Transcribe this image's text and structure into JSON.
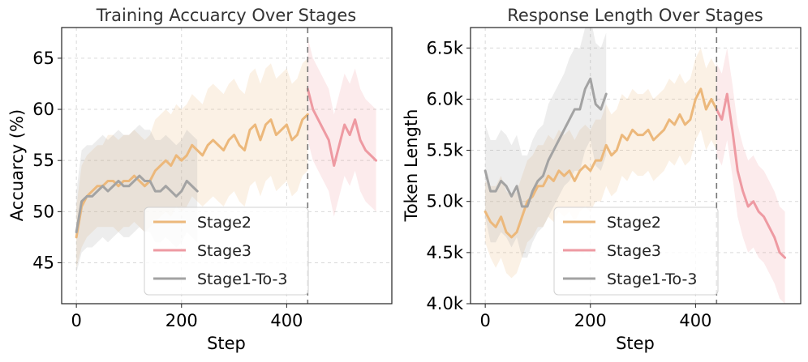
{
  "chart_data": [
    {
      "type": "line",
      "title": "Training Accuarcy Over Stages",
      "xlabel": "Step",
      "ylabel": "Accuarcy (%)",
      "xlim": [
        -28,
        600
      ],
      "ylim": [
        41,
        68
      ],
      "xticks": [
        0,
        200,
        400
      ],
      "xtick_labels": [
        "0",
        "200",
        "400"
      ],
      "yticks": [
        45,
        50,
        55,
        60,
        65
      ],
      "ytick_labels": [
        "45",
        "50",
        "55",
        "60",
        "65"
      ],
      "grid": true,
      "stage_boundary_x": 440,
      "legend_position": "bottom-right",
      "series": [
        {
          "name": "Stage2",
          "color": "#ecb87b",
          "x": [
            0,
            10,
            20,
            30,
            40,
            50,
            60,
            70,
            80,
            90,
            100,
            110,
            120,
            130,
            140,
            150,
            160,
            170,
            180,
            190,
            200,
            210,
            220,
            230,
            240,
            250,
            260,
            270,
            280,
            290,
            300,
            310,
            320,
            330,
            340,
            350,
            360,
            370,
            380,
            390,
            400,
            410,
            420,
            430,
            440
          ],
          "y": [
            47.5,
            50.5,
            51.5,
            52.0,
            52.5,
            52.5,
            53.0,
            53.0,
            52.5,
            53.0,
            53.0,
            53.5,
            53.0,
            52.5,
            53.0,
            54.0,
            54.5,
            55.0,
            54.5,
            55.5,
            55.0,
            55.5,
            56.5,
            56.0,
            55.5,
            56.5,
            57.0,
            56.5,
            56.0,
            57.0,
            57.5,
            56.5,
            56.0,
            58.0,
            58.5,
            57.0,
            58.5,
            59.0,
            57.5,
            58.0,
            58.5,
            57.0,
            57.5,
            59.0,
            59.5
          ],
          "band_halfwidth": [
            3,
            4,
            4,
            4,
            4,
            4,
            4.5,
            4.5,
            4.5,
            4.5,
            4.5,
            4.5,
            4.5,
            4.5,
            4.5,
            5,
            5,
            5,
            5,
            5,
            5,
            5,
            5,
            5,
            5,
            5.5,
            5.5,
            5.5,
            5.5,
            5.5,
            5.5,
            5.5,
            5.5,
            5.5,
            5.5,
            5.5,
            5.5,
            5.5,
            5.5,
            5.5,
            5.5,
            5.5,
            5.5,
            5.5,
            5.5
          ]
        },
        {
          "name": "Stage3",
          "color": "#ee9aa2",
          "x": [
            440,
            450,
            460,
            470,
            480,
            490,
            500,
            510,
            520,
            530,
            540,
            550,
            560,
            570
          ],
          "y": [
            62.0,
            60.0,
            59.0,
            58.0,
            57.0,
            54.5,
            56.5,
            58.5,
            57.5,
            59.0,
            57.0,
            56.0,
            55.5,
            55.0
          ],
          "band_halfwidth": [
            5,
            5,
            5,
            5,
            5,
            5,
            5,
            5,
            5,
            5,
            5,
            5,
            5,
            5
          ]
        },
        {
          "name": "Stage1-To-3",
          "color": "#a3a3a3",
          "x": [
            0,
            10,
            20,
            30,
            40,
            50,
            60,
            70,
            80,
            90,
            100,
            110,
            120,
            130,
            140,
            150,
            160,
            170,
            180,
            190,
            200,
            210,
            220,
            230
          ],
          "y": [
            48.0,
            51.0,
            51.5,
            51.5,
            52.0,
            52.5,
            52.0,
            52.5,
            53.0,
            52.5,
            52.5,
            53.0,
            53.5,
            53.0,
            53.0,
            52.0,
            52.0,
            52.5,
            52.0,
            51.5,
            52.0,
            53.0,
            52.5,
            52.0
          ],
          "band_halfwidth": [
            4,
            5,
            5,
            5,
            5,
            5,
            5,
            5,
            5,
            5,
            5,
            5,
            5,
            5,
            5,
            5,
            5,
            5,
            5,
            5,
            5,
            5,
            5,
            5
          ]
        }
      ]
    },
    {
      "type": "line",
      "title": "Response Length Over Stages",
      "xlabel": "Step",
      "ylabel": "Token Length",
      "xlim": [
        -28,
        600
      ],
      "ylim": [
        4000,
        6700
      ],
      "xticks": [
        0,
        200,
        400
      ],
      "xtick_labels": [
        "0",
        "200",
        "400"
      ],
      "yticks": [
        4000,
        4500,
        5000,
        5500,
        6000,
        6500
      ],
      "ytick_labels": [
        "4.0k",
        "4.5k",
        "5.0k",
        "5.5k",
        "6.0k",
        "6.5k"
      ],
      "grid": true,
      "stage_boundary_x": 440,
      "legend_position": "bottom-right",
      "series": [
        {
          "name": "Stage2",
          "color": "#ecb87b",
          "x": [
            0,
            10,
            20,
            30,
            40,
            50,
            60,
            70,
            80,
            90,
            100,
            110,
            120,
            130,
            140,
            150,
            160,
            170,
            180,
            190,
            200,
            210,
            220,
            230,
            240,
            250,
            260,
            270,
            280,
            290,
            300,
            310,
            320,
            330,
            340,
            350,
            360,
            370,
            380,
            390,
            400,
            410,
            420,
            430,
            440
          ],
          "y": [
            4900,
            4800,
            4750,
            4850,
            4700,
            4650,
            4700,
            4850,
            5000,
            5050,
            5150,
            5150,
            5250,
            5200,
            5300,
            5250,
            5300,
            5200,
            5300,
            5350,
            5300,
            5400,
            5400,
            5550,
            5450,
            5500,
            5650,
            5600,
            5700,
            5650,
            5650,
            5700,
            5600,
            5650,
            5700,
            5800,
            5750,
            5850,
            5750,
            5800,
            6000,
            6100,
            5900,
            6000,
            5900
          ],
          "band_halfwidth": [
            300,
            350,
            400,
            400,
            400,
            400,
            400,
            400,
            400,
            400,
            400,
            400,
            400,
            400,
            400,
            400,
            400,
            400,
            400,
            400,
            400,
            400,
            400,
            400,
            400,
            400,
            400,
            400,
            400,
            400,
            400,
            400,
            400,
            400,
            400,
            400,
            400,
            400,
            400,
            400,
            400,
            400,
            400,
            400,
            400
          ]
        },
        {
          "name": "Stage3",
          "color": "#ee9aa2",
          "x": [
            440,
            450,
            460,
            470,
            480,
            490,
            500,
            510,
            520,
            530,
            540,
            550,
            560,
            570
          ],
          "y": [
            5900,
            5800,
            6050,
            5700,
            5300,
            5100,
            4950,
            5000,
            4900,
            4850,
            4750,
            4650,
            4500,
            4450
          ],
          "band_halfwidth": [
            450,
            450,
            450,
            450,
            450,
            450,
            450,
            450,
            450,
            450,
            450,
            450,
            450,
            450
          ]
        },
        {
          "name": "Stage1-To-3",
          "color": "#a3a3a3",
          "x": [
            0,
            10,
            20,
            30,
            40,
            50,
            60,
            70,
            80,
            90,
            100,
            110,
            120,
            130,
            140,
            150,
            160,
            170,
            180,
            190,
            200,
            210,
            220,
            230
          ],
          "y": [
            5300,
            5100,
            5100,
            5200,
            5150,
            5050,
            5150,
            4950,
            4950,
            5100,
            5200,
            5250,
            5400,
            5500,
            5600,
            5700,
            5800,
            5900,
            5900,
            6100,
            6200,
            5950,
            5900,
            6050
          ],
          "band_halfwidth": [
            450,
            500,
            500,
            500,
            500,
            500,
            500,
            500,
            500,
            500,
            500,
            500,
            550,
            550,
            550,
            550,
            600,
            600,
            600,
            600,
            600,
            600,
            600,
            600
          ]
        }
      ]
    }
  ]
}
